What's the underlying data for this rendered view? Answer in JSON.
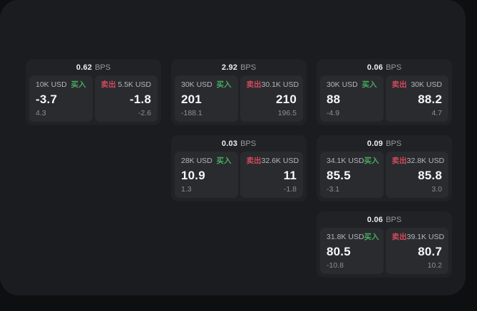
{
  "labels": {
    "bps": "BPS",
    "buy": "买入",
    "sell": "卖出"
  },
  "colors": {
    "background": "#0e0f10",
    "surface": "#1b1c1f",
    "card": "#212226",
    "panel": "#2a2b2f",
    "buy": "#46ab5e",
    "sell": "#d1495c"
  },
  "cards": [
    {
      "bps": "0.62",
      "buy": {
        "amount": "10K USD",
        "price": "-3.7",
        "delta": "4.3"
      },
      "sell": {
        "amount": "5.5K USD",
        "price": "-1.8",
        "delta": "-2.6"
      }
    },
    {
      "bps": "2.92",
      "buy": {
        "amount": "30K USD",
        "price": "201",
        "delta": "-188.1"
      },
      "sell": {
        "amount": "30.1K USD",
        "price": "210",
        "delta": "196.5"
      }
    },
    {
      "bps": "0.06",
      "buy": {
        "amount": "30K USD",
        "price": "88",
        "delta": "-4.9"
      },
      "sell": {
        "amount": "30K USD",
        "price": "88.2",
        "delta": "4.7"
      }
    },
    {
      "bps": "0.03",
      "buy": {
        "amount": "28K USD",
        "price": "10.9",
        "delta": "1.3"
      },
      "sell": {
        "amount": "32.6K USD",
        "price": "11",
        "delta": "-1.8"
      }
    },
    {
      "bps": "0.09",
      "buy": {
        "amount": "34.1K USD",
        "price": "85.5",
        "delta": "-3.1"
      },
      "sell": {
        "amount": "32.8K USD",
        "price": "85.8",
        "delta": "3.0"
      }
    },
    {
      "bps": "0.06",
      "buy": {
        "amount": "31.8K USD",
        "price": "80.5",
        "delta": "-10.8"
      },
      "sell": {
        "amount": "39.1K USD",
        "price": "80.7",
        "delta": "10.2"
      }
    }
  ]
}
